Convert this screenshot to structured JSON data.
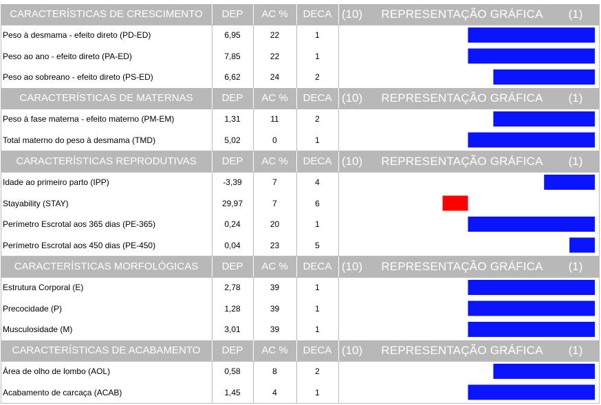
{
  "sections": [
    {
      "title": "CARACTERÍSTICAS DE CRESCIMENTO",
      "col_dep": "DEP",
      "col_ac": "AC %",
      "col_deca": "DECA",
      "graph_left": "(10)",
      "graph_title": "REPRESENTAÇÃO GRÁFICA",
      "graph_right": "(1)",
      "rows": [
        {
          "name": "Peso à desmama - efeito direto (PD-ED)",
          "dep": "6,95",
          "ac": "22",
          "deca": "1"
        },
        {
          "name": "Peso ao ano - efeito direto (PA-ED)",
          "dep": "7,85",
          "ac": "22",
          "deca": "1"
        },
        {
          "name": "Peso ao sobreano - efeito direto (PS-ED)",
          "dep": "6,62",
          "ac": "24",
          "deca": "2"
        }
      ]
    },
    {
      "title": "CARACTERÍSTICAS DE MATERNAS",
      "col_dep": "DEP",
      "col_ac": "AC %",
      "col_deca": "DECA",
      "graph_left": "(10)",
      "graph_title": "REPRESENTAÇÃO GRÁFICA",
      "graph_right": "(1)",
      "rows": [
        {
          "name": "Peso à fase materna - efeito materno (PM-EM)",
          "dep": "1,31",
          "ac": "11",
          "deca": "2"
        },
        {
          "name": "Total materno do peso à desmama (TMD)",
          "dep": "5,02",
          "ac": "0",
          "deca": "1"
        }
      ]
    },
    {
      "title": "CARACTERÍSTICAS REPRODUTIVAS",
      "col_dep": "DEP",
      "col_ac": "AC %",
      "col_deca": "DECA",
      "graph_left": "(10)",
      "graph_title": "REPRESENTAÇÃO GRÁFICA",
      "graph_right": "(1)",
      "rows": [
        {
          "name": "Idade ao primeiro parto (IPP)",
          "dep": "-3,39",
          "ac": "7",
          "deca": "4"
        },
        {
          "name": "Stayability (STAY)",
          "dep": "29,97",
          "ac": "7",
          "deca": "6"
        },
        {
          "name": "Perímetro Escrotal aos 365 dias (PE-365)",
          "dep": "0,24",
          "ac": "20",
          "deca": "1"
        },
        {
          "name": "Perímetro Escrotal aos 450 dias (PE-450)",
          "dep": "0,04",
          "ac": "23",
          "deca": "5"
        }
      ]
    },
    {
      "title": "CARACTERÍSTICAS MORFOLÓGICAS",
      "col_dep": "DEP",
      "col_ac": "AC %",
      "col_deca": "DECA",
      "graph_left": "(10)",
      "graph_title": "REPRESENTAÇÃO GRÁFICA",
      "graph_right": "(1)",
      "rows": [
        {
          "name": "Estrutura Corporal (E)",
          "dep": "2,78",
          "ac": "39",
          "deca": "1"
        },
        {
          "name": "Precocidade (P)",
          "dep": "1,28",
          "ac": "39",
          "deca": "1"
        },
        {
          "name": "Musculosidade (M)",
          "dep": "3,01",
          "ac": "39",
          "deca": "1"
        }
      ]
    },
    {
      "title": "CARACTERÍSTICAS DE ACABAMENTO",
      "col_dep": "DEP",
      "col_ac": "AC %",
      "col_deca": "DECA",
      "graph_left": "(10)",
      "graph_title": "REPRESENTAÇÃO GRÁFICA",
      "graph_right": "(1)",
      "rows": [
        {
          "name": "Área de olho de lombo (AOL)",
          "dep": "0,58",
          "ac": "8",
          "deca": "2"
        },
        {
          "name": "Acabamento de carcaça (ACAB)",
          "dep": "1,45",
          "ac": "4",
          "deca": "1"
        }
      ]
    }
  ],
  "chart_data": {
    "type": "bar",
    "orientation": "horizontal",
    "categories": [
      "PD-ED",
      "PA-ED",
      "PS-ED",
      "PM-EM",
      "TMD",
      "IPP",
      "STAY",
      "PE-365",
      "PE-450",
      "E",
      "P",
      "M",
      "AOL",
      "ACAB"
    ],
    "values": [
      1,
      1,
      2,
      2,
      1,
      4,
      6,
      1,
      5,
      1,
      1,
      1,
      2,
      1
    ],
    "value_label": "DECA",
    "axis_left_label": "(10)",
    "axis_right_label": "(1)",
    "colors": {
      "top_half": "#0a14ff",
      "bottom_half": "#ff0000"
    },
    "grid": false
  }
}
